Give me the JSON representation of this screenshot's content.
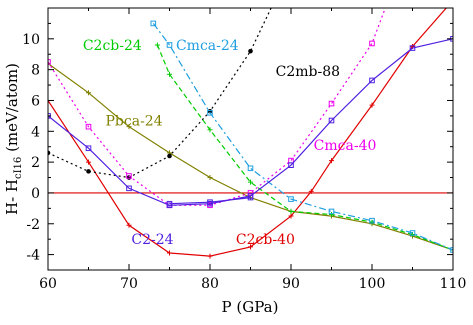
{
  "chart_data": {
    "type": "line",
    "xlabel": "P (GPa)",
    "ylabel_main": "H- H",
    "ylabel_sub": "cI16",
    "ylabel_unit": " (meV/atom)",
    "xlim": [
      60,
      110
    ],
    "ylim": [
      -5,
      12
    ],
    "xticks": [
      60,
      70,
      80,
      90,
      100,
      110
    ],
    "yticks": [
      -4,
      -2,
      0,
      2,
      4,
      6,
      8,
      10
    ],
    "reference_line": {
      "y": 0,
      "color": "#dd0000"
    },
    "series": [
      {
        "name": "C2cb-40",
        "color": "#e00000",
        "marker": "plus",
        "dash": "",
        "x": [
          60,
          65,
          70,
          75,
          80,
          85,
          90,
          92.5,
          95,
          100,
          105,
          110
        ],
        "y": [
          6.0,
          2.0,
          -2.1,
          -3.9,
          -4.1,
          -3.5,
          -1.5,
          0.1,
          2.1,
          5.7,
          9.5,
          12.5
        ]
      },
      {
        "name": "Pbca-24",
        "color": "#808000",
        "marker": "plus",
        "dash": "",
        "x": [
          60,
          65,
          70,
          75,
          80,
          85,
          90,
          95,
          100,
          105,
          110
        ],
        "y": [
          8.4,
          6.5,
          4.3,
          2.6,
          1.0,
          -0.3,
          -1.2,
          -1.5,
          -2.0,
          -2.8,
          -3.7
        ]
      },
      {
        "name": "C2mb-88",
        "color": "#000000",
        "marker": "dot",
        "dash": "2,3",
        "x": [
          60,
          65,
          70,
          75,
          80,
          85,
          88
        ],
        "y": [
          2.6,
          1.4,
          1.0,
          2.4,
          5.3,
          9.2,
          12.5
        ]
      },
      {
        "name": "C2cb-24",
        "color": "#00cc00",
        "marker": "plus",
        "dash": "5,3",
        "x": [
          73.5,
          75,
          80,
          85,
          90,
          95,
          100,
          105,
          110
        ],
        "y": [
          9.6,
          7.7,
          4.1,
          0.7,
          -1.2,
          -1.4,
          -1.9,
          -2.7,
          -3.7
        ]
      },
      {
        "name": "Cmca-24",
        "color": "#1f9fe0",
        "marker": "square",
        "dash": "7,3,2,3",
        "x": [
          73,
          75,
          80,
          85,
          90,
          95,
          100,
          105,
          110
        ],
        "y": [
          11.0,
          9.6,
          5.2,
          1.6,
          -0.4,
          -1.2,
          -1.8,
          -2.6,
          -3.7
        ]
      },
      {
        "name": "C2-24",
        "color": "#5020e0",
        "marker": "square",
        "dash": "",
        "x": [
          75,
          80,
          85
        ],
        "y": [
          -0.7,
          -0.6,
          -0.3
        ]
      },
      {
        "name": "Cmca-40",
        "color": "#ee00ee",
        "marker": "square",
        "dash": "2,3",
        "x": [
          60,
          65,
          70,
          75,
          80,
          85,
          90,
          95,
          100,
          102
        ],
        "y": [
          8.5,
          4.3,
          1.1,
          -0.8,
          -0.8,
          0.0,
          2.1,
          5.8,
          9.7,
          12.5
        ]
      },
      {
        "name": "",
        "color": "#5020e0",
        "marker": "square",
        "dash": "",
        "x": [
          60,
          65,
          70,
          75,
          80,
          85,
          90,
          95,
          100,
          105,
          110
        ],
        "y": [
          5.0,
          2.9,
          0.3,
          -0.8,
          -0.7,
          -0.2,
          1.8,
          4.7,
          7.3,
          9.4,
          10.0
        ]
      }
    ],
    "labels": [
      {
        "text": "C2cb-24",
        "color": "#00cc00",
        "x": 64.3,
        "y": 9.6
      },
      {
        "text": "Cmca-24",
        "color": "#1f9fe0",
        "x": 75.8,
        "y": 9.6
      },
      {
        "text": "C2mb-88",
        "color": "#000000",
        "x": 88.1,
        "y": 7.9
      },
      {
        "text": "Pbca-24",
        "color": "#808000",
        "x": 67.1,
        "y": 4.7
      },
      {
        "text": "Cmca-40",
        "color": "#ee00ee",
        "x": 92.8,
        "y": 3.1
      },
      {
        "text": "C2-24",
        "color": "#5020e0",
        "x": 70.3,
        "y": -3.0
      },
      {
        "text": "C2cb-40",
        "color": "#e00000",
        "x": 83.2,
        "y": -3.0
      }
    ]
  }
}
